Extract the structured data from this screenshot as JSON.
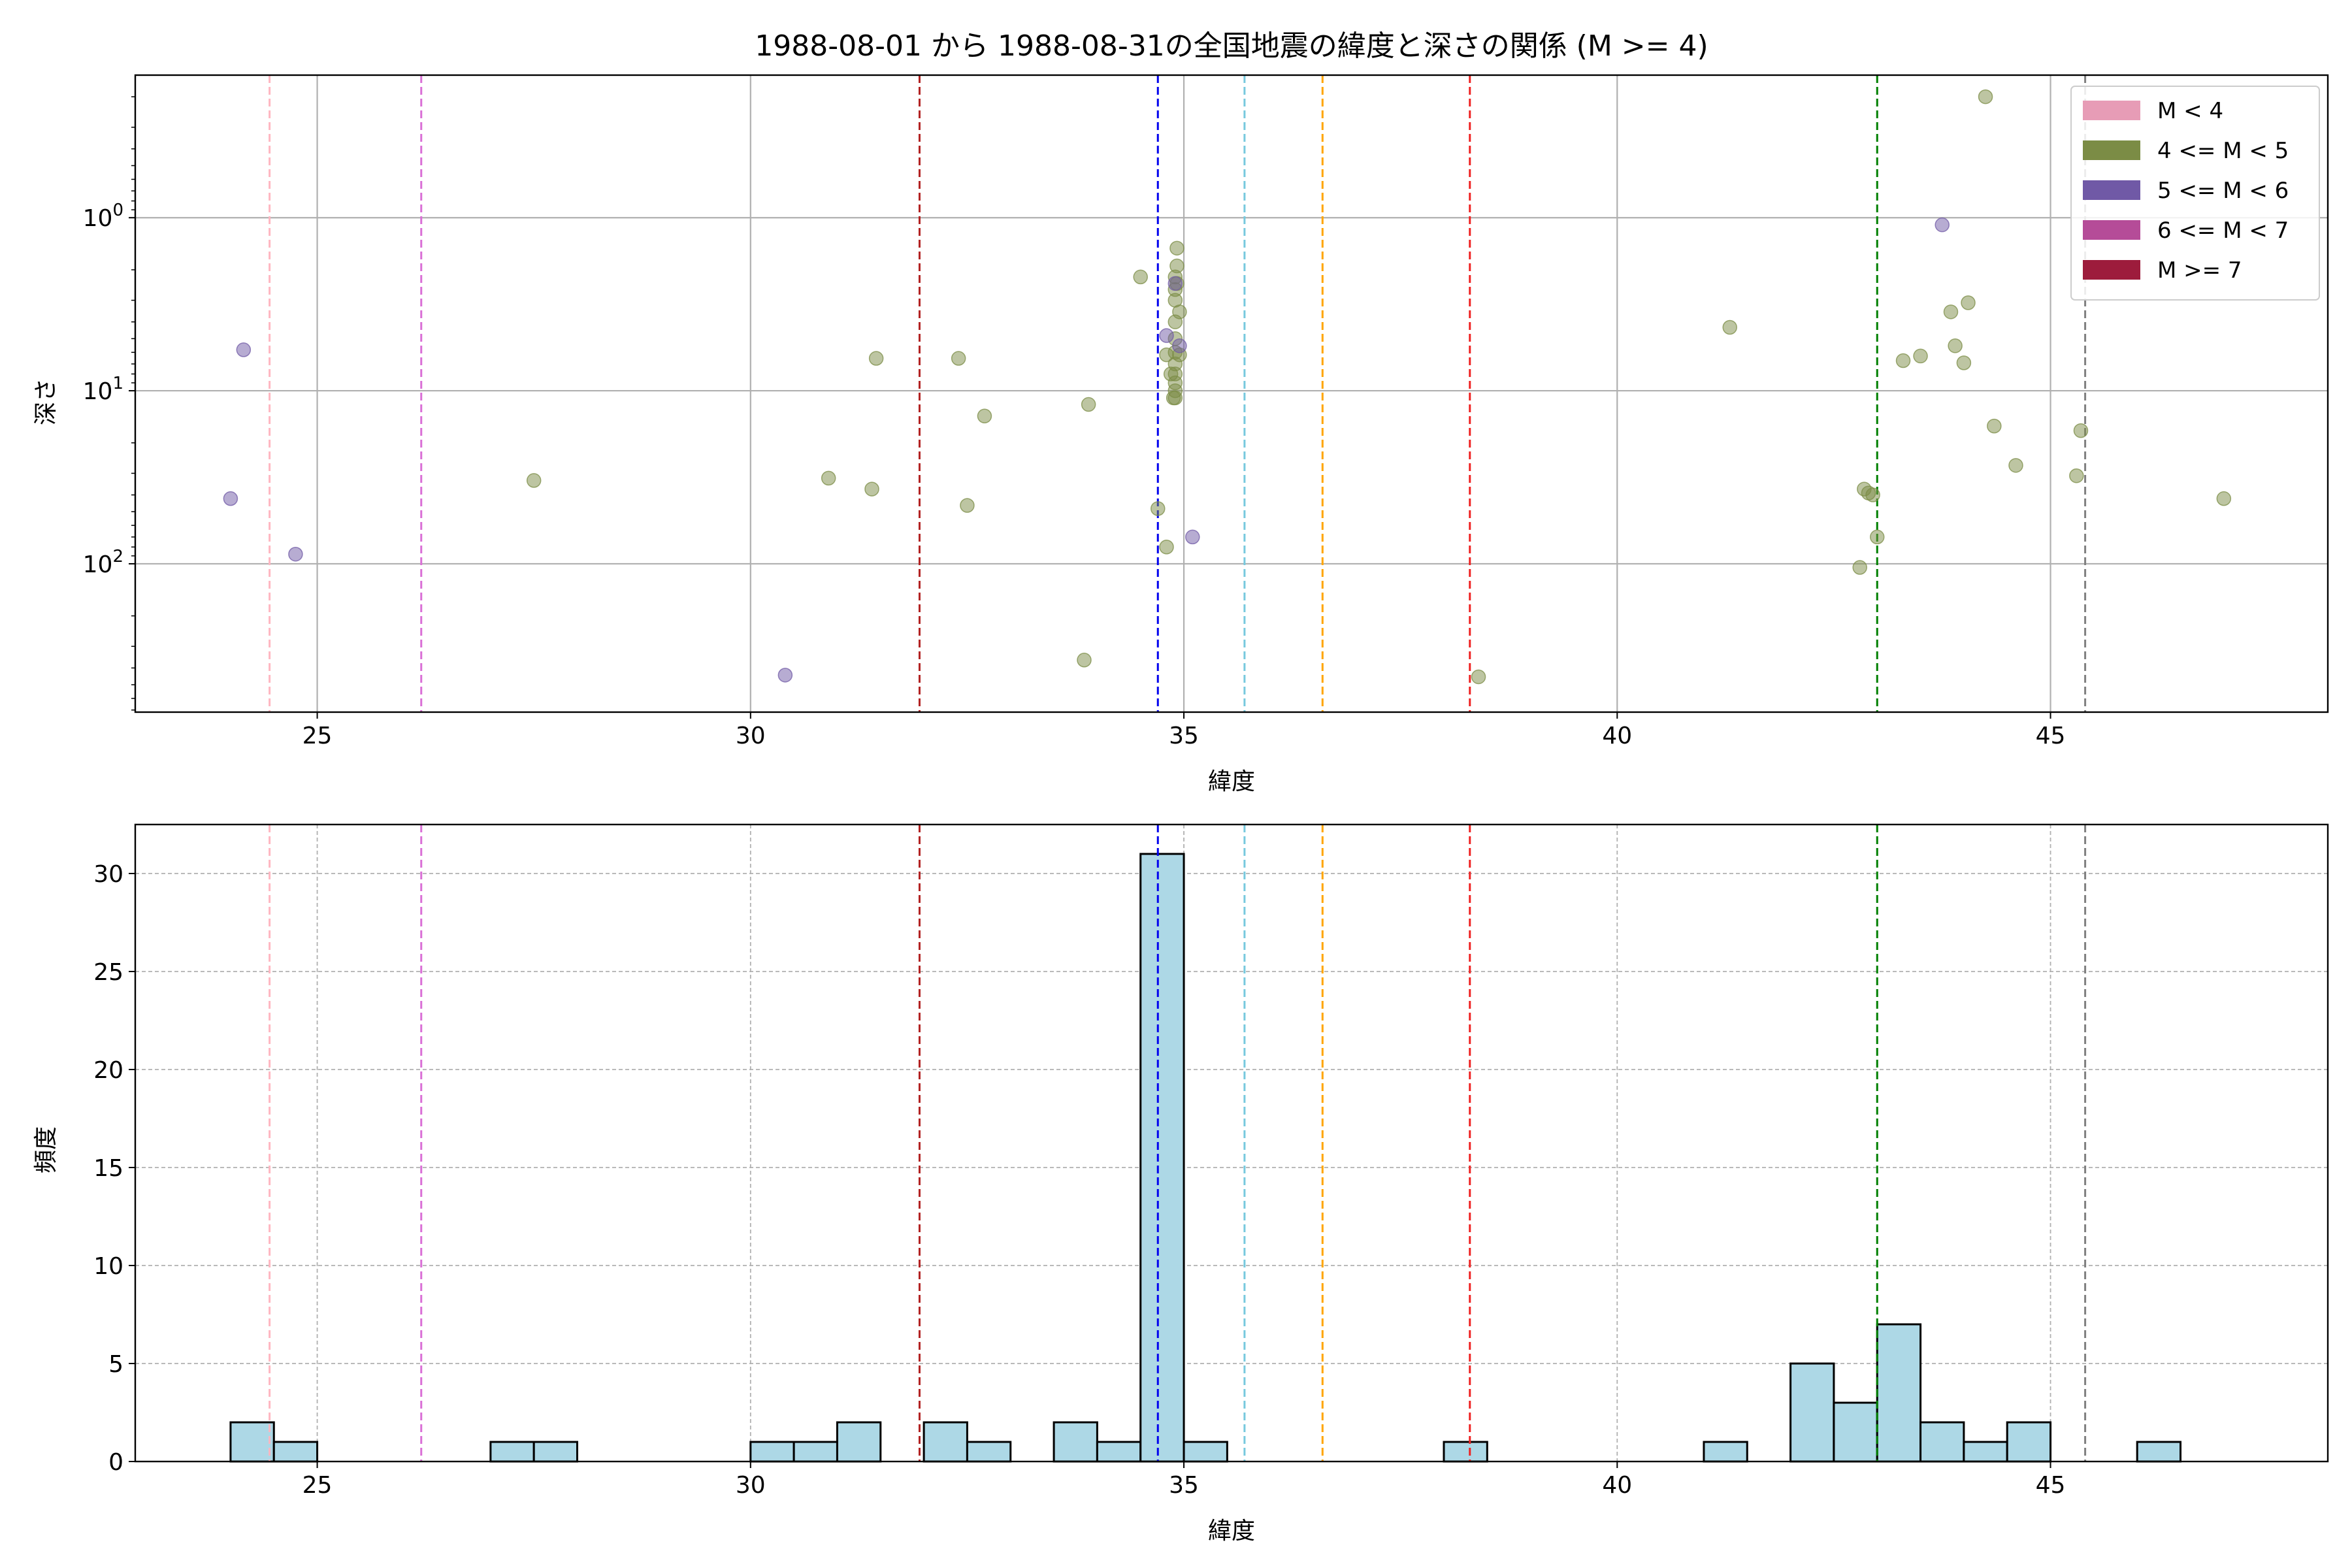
{
  "title": "1988-08-01 から 1988-08-31の全国地震の緯度と深さの関係 (M >= 4)",
  "chart_data": [
    {
      "type": "scatter",
      "xlabel": "緯度",
      "ylabel": "深さ",
      "x_scale": "linear",
      "y_scale": "log",
      "y_inverted": true,
      "xlim": [
        22.9,
        48.2
      ],
      "ylim": [
        0.15,
        720
      ],
      "x_ticks": [
        25,
        30,
        35,
        40,
        45
      ],
      "y_ticks": [
        1,
        10,
        100
      ],
      "y_tick_labels": [
        "10^0",
        "10^1",
        "10^2"
      ],
      "grid": true,
      "legend": {
        "position": "top-right",
        "entries": [
          {
            "label": "M < 4",
            "color": "#e79cb6"
          },
          {
            "label": "4 <= M < 5",
            "color": "#7b8c45"
          },
          {
            "label": "5 <= M < 6",
            "color": "#7059a6"
          },
          {
            "label": "6 <= M < 7",
            "color": "#b54c98"
          },
          {
            "label": "M >= 7",
            "color": "#9d1c3c"
          }
        ]
      },
      "vlines": [
        {
          "x": 24.45,
          "color": "#ffb6c1"
        },
        {
          "x": 26.2,
          "color": "#da70d6"
        },
        {
          "x": 31.95,
          "color": "#b22222"
        },
        {
          "x": 34.7,
          "color": "#0000ee"
        },
        {
          "x": 35.7,
          "color": "#77c9de"
        },
        {
          "x": 36.6,
          "color": "#ffa500"
        },
        {
          "x": 38.3,
          "color": "#ee2222"
        },
        {
          "x": 43.0,
          "color": "#008000"
        },
        {
          "x": 45.4,
          "color": "#808080"
        }
      ],
      "series": [
        {
          "name": "4 <= M < 5",
          "color": "#7b8c45",
          "points": [
            [
              27.5,
              33
            ],
            [
              30.9,
              32
            ],
            [
              31.4,
              37
            ],
            [
              31.45,
              6.5
            ],
            [
              32.4,
              6.5
            ],
            [
              32.5,
              46
            ],
            [
              32.7,
              14
            ],
            [
              33.85,
              360
            ],
            [
              33.9,
              12
            ],
            [
              34.5,
              2.2
            ],
            [
              34.7,
              48
            ],
            [
              34.8,
              80
            ],
            [
              34.8,
              6.2
            ],
            [
              34.85,
              8
            ],
            [
              34.88,
              11
            ],
            [
              34.9,
              2.2
            ],
            [
              34.9,
              2.6
            ],
            [
              34.9,
              3
            ],
            [
              34.9,
              4
            ],
            [
              34.9,
              5
            ],
            [
              34.9,
              6
            ],
            [
              34.9,
              7
            ],
            [
              34.9,
              8
            ],
            [
              34.9,
              9
            ],
            [
              34.9,
              10
            ],
            [
              34.9,
              11
            ],
            [
              34.92,
              1.5
            ],
            [
              34.92,
              1.9
            ],
            [
              34.92,
              2.4
            ],
            [
              34.95,
              3.5
            ],
            [
              34.95,
              6.2
            ],
            [
              38.4,
              450
            ],
            [
              41.3,
              4.3
            ],
            [
              42.8,
              105
            ],
            [
              42.85,
              37
            ],
            [
              42.9,
              39
            ],
            [
              42.95,
              40
            ],
            [
              43.0,
              70
            ],
            [
              43.3,
              6.7
            ],
            [
              43.5,
              6.3
            ],
            [
              43.85,
              3.5
            ],
            [
              43.9,
              5.5
            ],
            [
              44.0,
              6.9
            ],
            [
              44.05,
              3.1
            ],
            [
              44.25,
              0.2
            ],
            [
              44.35,
              16
            ],
            [
              44.6,
              27
            ],
            [
              45.3,
              31
            ],
            [
              45.35,
              17
            ],
            [
              47.0,
              42
            ]
          ]
        },
        {
          "name": "5 <= M < 6",
          "color": "#7059a6",
          "points": [
            [
              24.0,
              42
            ],
            [
              24.15,
              5.8
            ],
            [
              24.75,
              88
            ],
            [
              30.4,
              440
            ],
            [
              34.8,
              4.8
            ],
            [
              34.9,
              2.4
            ],
            [
              34.95,
              5.5
            ],
            [
              35.1,
              70
            ],
            [
              43.75,
              1.1
            ]
          ]
        }
      ]
    },
    {
      "type": "bar",
      "xlabel": "緯度",
      "ylabel": "頻度",
      "xlim": [
        22.9,
        48.2
      ],
      "ylim": [
        0,
        32.5
      ],
      "x_ticks": [
        25,
        30,
        35,
        40,
        45
      ],
      "y_ticks": [
        0,
        5,
        10,
        15,
        20,
        25,
        30
      ],
      "grid": true,
      "bar_color": "#add8e6",
      "bin_edges_start": 24.0,
      "bin_width": 0.5,
      "counts": [
        2,
        1,
        0,
        0,
        0,
        0,
        1,
        1,
        0,
        0,
        0,
        0,
        1,
        1,
        2,
        0,
        2,
        1,
        0,
        2,
        1,
        31,
        1,
        0,
        0,
        0,
        0,
        0,
        1,
        0,
        0,
        0,
        0,
        0,
        1,
        0,
        5,
        3,
        7,
        2,
        1,
        2,
        0,
        0,
        1
      ],
      "vlines": [
        {
          "x": 24.45,
          "color": "#ffb6c1"
        },
        {
          "x": 26.2,
          "color": "#da70d6"
        },
        {
          "x": 31.95,
          "color": "#b22222"
        },
        {
          "x": 34.7,
          "color": "#0000ee"
        },
        {
          "x": 35.7,
          "color": "#77c9de"
        },
        {
          "x": 36.6,
          "color": "#ffa500"
        },
        {
          "x": 38.3,
          "color": "#ee2222"
        },
        {
          "x": 43.0,
          "color": "#008000"
        },
        {
          "x": 45.4,
          "color": "#808080"
        }
      ]
    }
  ]
}
